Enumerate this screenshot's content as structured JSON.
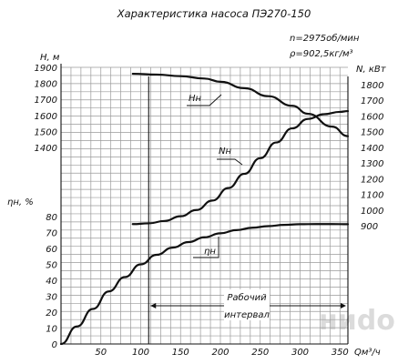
{
  "title": "Характеристика насоса ПЭ270-150",
  "params": {
    "speed": "n=2975об/мин",
    "density": "ρ=902,5кг/м³"
  },
  "watermark": "ниdo",
  "chart_data": {
    "type": "line",
    "title": "Характеристика насоса ПЭ270-150",
    "xlabel": "Qм³/ч",
    "x_range": [
      0,
      360
    ],
    "x_ticks": [
      50,
      100,
      150,
      200,
      250,
      300,
      350
    ],
    "grid": true,
    "axes": {
      "H": {
        "label": "H, м",
        "range": [
          1300,
          1900
        ],
        "ticks": [
          1900,
          1800,
          1700,
          1600,
          1500,
          1400
        ]
      },
      "eta": {
        "label": "ηн, %",
        "range": [
          0,
          80
        ],
        "ticks": [
          80,
          70,
          60,
          50,
          40,
          30,
          20,
          10,
          0
        ]
      },
      "N": {
        "label": "N, кВт",
        "range": [
          900,
          1800
        ],
        "ticks": [
          1800,
          1700,
          1600,
          1500,
          1400,
          1300,
          1200,
          1100,
          1000,
          900
        ]
      }
    },
    "series": [
      {
        "name": "Hн",
        "axis": "H",
        "x": [
          90,
          120,
          150,
          180,
          200,
          230,
          260,
          290,
          310,
          340,
          360
        ],
        "y": [
          1860,
          1855,
          1845,
          1830,
          1810,
          1770,
          1720,
          1660,
          1610,
          1530,
          1470
        ]
      },
      {
        "name": "Nн",
        "axis": "N",
        "x": [
          90,
          110,
          130,
          150,
          170,
          190,
          210,
          230,
          250,
          270,
          290,
          310,
          330,
          350,
          365
        ],
        "y": [
          910,
          915,
          930,
          960,
          1000,
          1060,
          1140,
          1230,
          1330,
          1430,
          1520,
          1580,
          1610,
          1625,
          1630
        ]
      },
      {
        "name": "ηн",
        "axis": "eta",
        "x": [
          0,
          20,
          40,
          60,
          80,
          100,
          120,
          140,
          160,
          180,
          200,
          220,
          240,
          260,
          280,
          300,
          320,
          340,
          365
        ],
        "y": [
          0,
          11,
          22,
          33,
          42,
          50,
          56,
          60.5,
          64,
          67,
          69.5,
          71.5,
          73,
          74,
          74.8,
          75.2,
          75.3,
          75.3,
          75.2
        ]
      }
    ],
    "working_interval": {
      "label": [
        "Рабочий",
        "интервал"
      ],
      "range": [
        110,
        360
      ]
    },
    "series_labels": [
      "Hн",
      "Nн",
      "ηн"
    ]
  }
}
